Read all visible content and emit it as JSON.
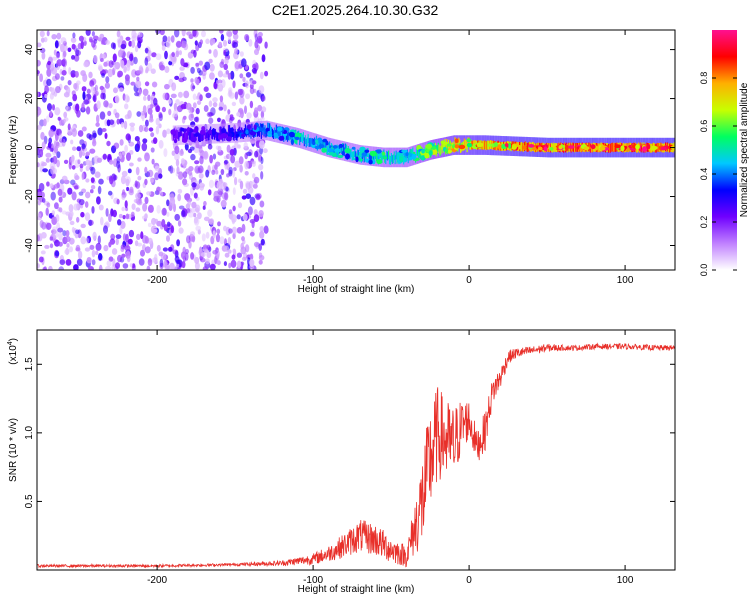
{
  "title": "C2E1.2025.264.10.30.G32",
  "chart_data": [
    {
      "type": "heatmap",
      "xlabel": "Height of straight line (km)",
      "ylabel": "Frequency (Hz)",
      "xlim": [
        -277,
        132
      ],
      "ylim": [
        -50,
        48
      ],
      "xticks": [
        -200,
        -100,
        0,
        100
      ],
      "yticks": [
        -40,
        -20,
        0,
        20,
        40
      ],
      "grid": false,
      "colorbar": {
        "label": "Normalized spectral amplitude",
        "range": [
          0,
          1
        ],
        "ticks": [
          "0.0",
          "0.2",
          "0.4",
          "0.6",
          "0.8"
        ],
        "colors": [
          "#ffffff",
          "#c080ff",
          "#7000ff",
          "#0000ff",
          "#00c8ff",
          "#00ff60",
          "#c8ff00",
          "#ffb000",
          "#ff0000",
          "#ff1090"
        ]
      },
      "features": [
        {
          "kind": "noise",
          "x_range": [
            -277,
            -130
          ],
          "y_range": [
            -50,
            48
          ],
          "amplitude": [
            0.05,
            0.3
          ]
        },
        {
          "kind": "band",
          "x": [
            -190,
            -150,
            -130,
            -110,
            -90,
            -70,
            -55,
            -40,
            -25,
            -10,
            10,
            50,
            132
          ],
          "center": [
            5,
            6,
            7,
            4,
            0,
            -3,
            -4,
            -4,
            -1,
            1,
            1,
            0,
            0
          ],
          "amplitude": [
            0.25,
            0.3,
            0.4,
            0.45,
            0.45,
            0.45,
            0.5,
            0.5,
            0.6,
            0.75,
            0.8,
            0.85,
            0.85
          ]
        }
      ]
    },
    {
      "type": "line",
      "xlabel": "Height of straight line (km)",
      "ylabel": "SNR (10 * v/v)",
      "y_multiplier": "(x10",
      "y_multiplier_exp": "4",
      "y_multiplier_close": ")",
      "xlim": [
        -277,
        132
      ],
      "ylim": [
        0,
        1.75
      ],
      "xticks": [
        -200,
        -100,
        0,
        100
      ],
      "yticks": [
        0.5,
        1.0,
        1.5
      ],
      "ytick_labels": [
        "0.5",
        "1.0",
        "1.5"
      ],
      "color": "#e8302a",
      "series": [
        {
          "x": [
            -277,
            -250,
            -200,
            -150,
            -120,
            -100,
            -90,
            -80,
            -70,
            -60,
            -50,
            -40,
            -35,
            -30,
            -25,
            -20,
            -15,
            -10,
            -5,
            0,
            5,
            10,
            15,
            20,
            25,
            30,
            40,
            50,
            60,
            70,
            80,
            100,
            120,
            132
          ],
          "y": [
            0.03,
            0.03,
            0.03,
            0.04,
            0.05,
            0.08,
            0.12,
            0.18,
            0.25,
            0.22,
            0.15,
            0.1,
            0.3,
            0.5,
            0.8,
            1.0,
            0.95,
            0.9,
            1.05,
            1.1,
            0.9,
            1.0,
            1.3,
            1.4,
            1.55,
            1.58,
            1.6,
            1.62,
            1.62,
            1.62,
            1.63,
            1.63,
            1.62,
            1.62
          ],
          "noise": [
            0.01,
            0.01,
            0.01,
            0.01,
            0.02,
            0.04,
            0.06,
            0.09,
            0.12,
            0.12,
            0.1,
            0.08,
            0.2,
            0.35,
            0.4,
            0.35,
            0.3,
            0.3,
            0.2,
            0.15,
            0.12,
            0.15,
            0.1,
            0.08,
            0.05,
            0.04,
            0.03,
            0.03,
            0.02,
            0.02,
            0.02,
            0.02,
            0.02,
            0.02
          ]
        }
      ]
    }
  ]
}
